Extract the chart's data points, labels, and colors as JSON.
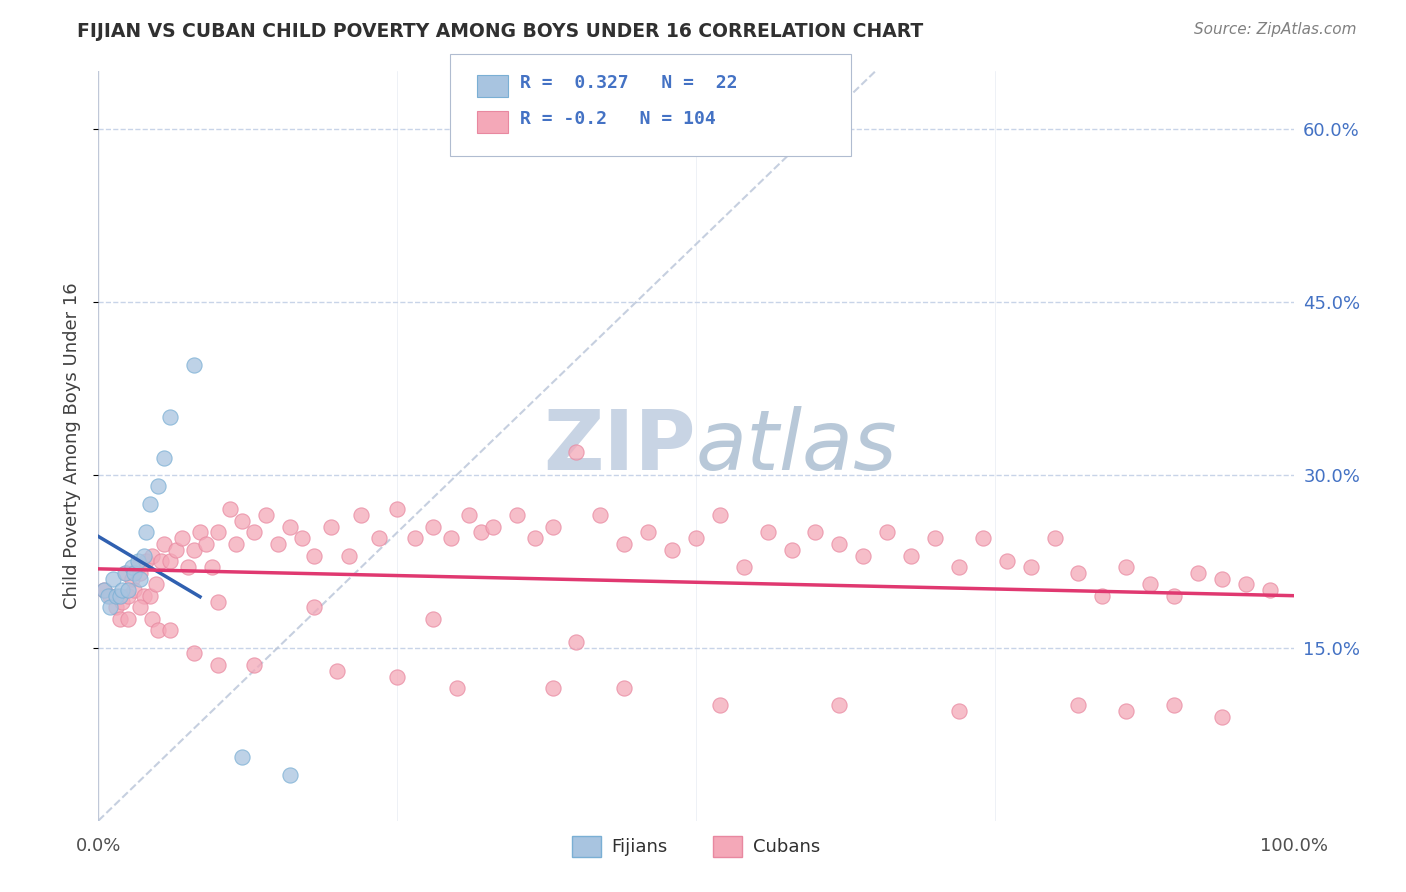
{
  "title": "FIJIAN VS CUBAN CHILD POVERTY AMONG BOYS UNDER 16 CORRELATION CHART",
  "source": "Source: ZipAtlas.com",
  "ylabel": "Child Poverty Among Boys Under 16",
  "fijian_R": 0.327,
  "fijian_N": 22,
  "cuban_R": -0.2,
  "cuban_N": 104,
  "fijian_color": "#a8c4e0",
  "fijian_edge_color": "#7aafd4",
  "cuban_color": "#f4a8b8",
  "cuban_edge_color": "#e888a0",
  "fijian_line_color": "#3060b0",
  "cuban_line_color": "#e03870",
  "trendline_gray_color": "#b8c4d8",
  "legend_text_color": "#4472c4",
  "watermark_color": "#c8d4e4",
  "title_color": "#303030",
  "source_color": "#808080",
  "grid_color": "#c8d4e8",
  "ytick_color": "#4472c4",
  "xmin": 0.0,
  "xmax": 1.0,
  "ymin": 0.0,
  "ymax": 0.65,
  "fijian_x": [
    0.005,
    0.008,
    0.01,
    0.012,
    0.015,
    0.018,
    0.02,
    0.022,
    0.025,
    0.028,
    0.03,
    0.033,
    0.035,
    0.038,
    0.04,
    0.043,
    0.05,
    0.055,
    0.06,
    0.08,
    0.12,
    0.16
  ],
  "fijian_y": [
    0.2,
    0.195,
    0.185,
    0.21,
    0.195,
    0.195,
    0.2,
    0.215,
    0.2,
    0.22,
    0.215,
    0.225,
    0.21,
    0.23,
    0.25,
    0.275,
    0.29,
    0.315,
    0.35,
    0.395,
    0.055,
    0.04
  ],
  "cuban_x": [
    0.005,
    0.01,
    0.015,
    0.018,
    0.02,
    0.023,
    0.025,
    0.028,
    0.03,
    0.033,
    0.035,
    0.038,
    0.04,
    0.043,
    0.045,
    0.048,
    0.052,
    0.055,
    0.06,
    0.065,
    0.07,
    0.075,
    0.08,
    0.085,
    0.09,
    0.095,
    0.1,
    0.11,
    0.115,
    0.12,
    0.13,
    0.14,
    0.15,
    0.16,
    0.17,
    0.18,
    0.195,
    0.21,
    0.22,
    0.235,
    0.25,
    0.265,
    0.28,
    0.295,
    0.31,
    0.32,
    0.33,
    0.35,
    0.365,
    0.38,
    0.4,
    0.42,
    0.44,
    0.46,
    0.48,
    0.5,
    0.52,
    0.54,
    0.56,
    0.58,
    0.6,
    0.62,
    0.64,
    0.66,
    0.68,
    0.7,
    0.72,
    0.74,
    0.76,
    0.78,
    0.8,
    0.82,
    0.84,
    0.86,
    0.88,
    0.9,
    0.92,
    0.94,
    0.96,
    0.98,
    0.025,
    0.035,
    0.045,
    0.05,
    0.06,
    0.08,
    0.1,
    0.13,
    0.2,
    0.25,
    0.3,
    0.38,
    0.44,
    0.52,
    0.62,
    0.72,
    0.82,
    0.86,
    0.9,
    0.94,
    0.1,
    0.18,
    0.28,
    0.4
  ],
  "cuban_y": [
    0.2,
    0.195,
    0.185,
    0.175,
    0.19,
    0.215,
    0.195,
    0.21,
    0.2,
    0.22,
    0.215,
    0.195,
    0.225,
    0.195,
    0.23,
    0.205,
    0.225,
    0.24,
    0.225,
    0.235,
    0.245,
    0.22,
    0.235,
    0.25,
    0.24,
    0.22,
    0.25,
    0.27,
    0.24,
    0.26,
    0.25,
    0.265,
    0.24,
    0.255,
    0.245,
    0.23,
    0.255,
    0.23,
    0.265,
    0.245,
    0.27,
    0.245,
    0.255,
    0.245,
    0.265,
    0.25,
    0.255,
    0.265,
    0.245,
    0.255,
    0.32,
    0.265,
    0.24,
    0.25,
    0.235,
    0.245,
    0.265,
    0.22,
    0.25,
    0.235,
    0.25,
    0.24,
    0.23,
    0.25,
    0.23,
    0.245,
    0.22,
    0.245,
    0.225,
    0.22,
    0.245,
    0.215,
    0.195,
    0.22,
    0.205,
    0.195,
    0.215,
    0.21,
    0.205,
    0.2,
    0.175,
    0.185,
    0.175,
    0.165,
    0.165,
    0.145,
    0.135,
    0.135,
    0.13,
    0.125,
    0.115,
    0.115,
    0.115,
    0.1,
    0.1,
    0.095,
    0.1,
    0.095,
    0.1,
    0.09,
    0.19,
    0.185,
    0.175,
    0.155
  ]
}
